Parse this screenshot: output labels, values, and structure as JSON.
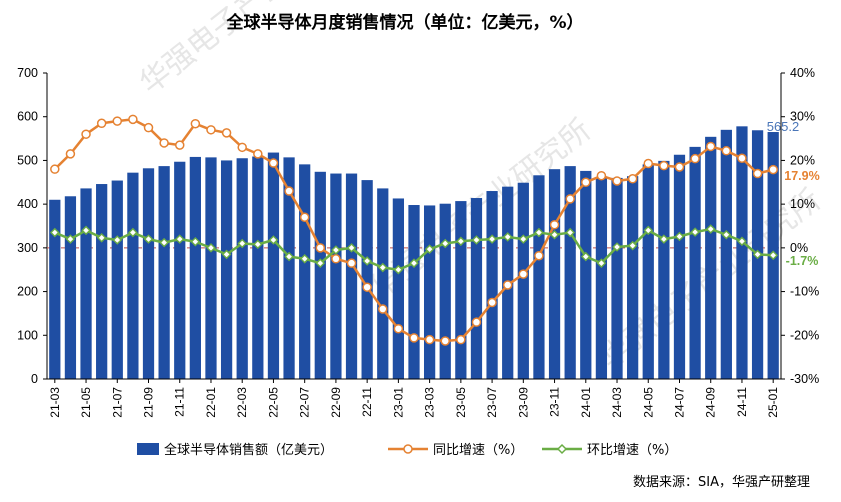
{
  "chart_data": {
    "type": "bar+line",
    "title": "全球半导体月度销售情况（单位：亿美元，%）",
    "categories": [
      "21-03",
      "21-04",
      "21-05",
      "21-06",
      "21-07",
      "21-08",
      "21-09",
      "21-10",
      "21-11",
      "21-12",
      "22-01",
      "22-02",
      "22-03",
      "22-04",
      "22-05",
      "22-06",
      "22-07",
      "22-08",
      "22-09",
      "22-10",
      "22-11",
      "22-12",
      "23-01",
      "23-02",
      "23-03",
      "23-04",
      "23-05",
      "23-06",
      "23-07",
      "23-08",
      "23-09",
      "23-10",
      "23-11",
      "23-12",
      "24-01",
      "24-02",
      "24-03",
      "24-04",
      "24-05",
      "24-06",
      "24-07",
      "24-08",
      "24-09",
      "24-10",
      "24-11",
      "24-12",
      "25-01"
    ],
    "x_tick_labels": [
      "21-03",
      "21-05",
      "21-07",
      "21-09",
      "21-11",
      "22-01",
      "22-03",
      "22-05",
      "22-07",
      "22-09",
      "22-11",
      "23-01",
      "23-03",
      "23-05",
      "23-07",
      "23-09",
      "23-11",
      "24-01",
      "24-03",
      "24-05",
      "24-07",
      "24-09",
      "24-11",
      "25-01"
    ],
    "y_left": {
      "ylim": [
        0,
        700
      ],
      "ticks": [
        "0",
        "100",
        "200",
        "300",
        "400",
        "500",
        "600",
        "700"
      ]
    },
    "y_right": {
      "ylim": [
        -30,
        40
      ],
      "ticks": [
        "-30%",
        "-20%",
        "-10%",
        "0%",
        "10%",
        "20%",
        "30%",
        "40%"
      ]
    },
    "grid": false,
    "legend_placement": "bottom",
    "series": [
      {
        "name": "全球半导体销售额（亿美元）",
        "type": "bar",
        "axis": "left",
        "color": "#1f4ea3",
        "values": [
          410,
          418,
          436,
          446,
          454,
          472,
          482,
          487,
          497,
          508,
          507,
          500,
          505,
          509,
          518,
          507,
          491,
          474,
          470,
          470,
          455,
          436,
          413,
          398,
          397,
          401,
          407,
          414,
          430,
          440,
          449,
          466,
          480,
          487,
          476,
          459,
          460,
          464,
          491,
          499,
          513,
          531,
          554,
          570,
          578,
          569,
          565
        ]
      },
      {
        "name": "同比增速（%）",
        "type": "line",
        "axis": "right",
        "color": "#e58232",
        "values": [
          18,
          21.5,
          26,
          28.5,
          29,
          29.4,
          27.5,
          24,
          23.5,
          28.4,
          27,
          26.3,
          23,
          21.5,
          19.4,
          13,
          7,
          0,
          -2.5,
          -3.5,
          -9,
          -14,
          -18.5,
          -20.6,
          -21,
          -21.3,
          -21,
          -17,
          -12.5,
          -8.5,
          -6,
          -1.8,
          5.3,
          11.2,
          15,
          16.5,
          15.3,
          15.8,
          19.3,
          18.8,
          18.5,
          20.4,
          23.2,
          22.2,
          20.5,
          17,
          17.9
        ]
      },
      {
        "name": "环比增速（%）",
        "type": "line",
        "axis": "right",
        "color": "#6aad45",
        "values": [
          3.5,
          2,
          4,
          2.3,
          1.8,
          3.5,
          2,
          1.2,
          2,
          1.4,
          0,
          -1.5,
          1,
          0.8,
          1.8,
          -2,
          -2.5,
          -3.5,
          -0.5,
          0,
          -3,
          -4.5,
          -5,
          -3.5,
          -0.3,
          1,
          1.5,
          1.8,
          2,
          2.5,
          2,
          3.5,
          3,
          3.5,
          -2,
          -3.5,
          0.2,
          0.5,
          4,
          2,
          2.6,
          3.6,
          4.3,
          3,
          1.5,
          -1.5,
          -1.7
        ]
      }
    ],
    "annotations": {
      "last_bar_label": "565.2",
      "yoy_last_label": "17.9%",
      "mom_last_label": "-1.7%"
    },
    "legend": {
      "bar": "全球半导体销售额（亿美元）",
      "yoy": "同比增速（%）",
      "mom": "环比增速（%）"
    },
    "source": "数据来源：SIA，华强产研整理",
    "watermark": "华强电子产业研究所"
  }
}
